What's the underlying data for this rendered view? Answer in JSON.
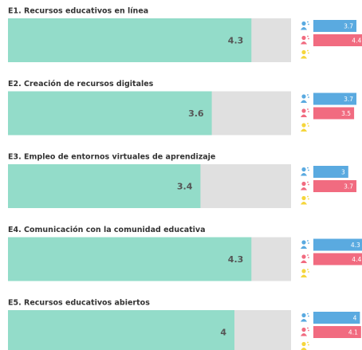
{
  "chart_data": [
    {
      "type": "bar",
      "title": "E1. Recursos educativos en línea",
      "value": 4.3,
      "xlim": [
        0,
        5
      ],
      "color": "#93dcc9",
      "track_color": "#e0e0e0",
      "series": [
        {
          "color": "#5aaae0",
          "values": [
            3.7
          ]
        },
        {
          "color": "#f16b80",
          "values": [
            4.4
          ]
        },
        {
          "color": "#f5d63c",
          "values": [
            null
          ]
        }
      ]
    },
    {
      "type": "bar",
      "title": "E2. Creación de recursos digitales",
      "value": 3.6,
      "xlim": [
        0,
        5
      ],
      "color": "#93dcc9",
      "track_color": "#e0e0e0",
      "series": [
        {
          "color": "#5aaae0",
          "values": [
            3.7
          ]
        },
        {
          "color": "#f16b80",
          "values": [
            3.5
          ]
        },
        {
          "color": "#f5d63c",
          "values": [
            null
          ]
        }
      ]
    },
    {
      "type": "bar",
      "title": "E3. Empleo de entornos virtuales de aprendizaje",
      "value": 3.4,
      "xlim": [
        0,
        5
      ],
      "color": "#93dcc9",
      "track_color": "#e0e0e0",
      "series": [
        {
          "color": "#5aaae0",
          "values": [
            3
          ]
        },
        {
          "color": "#f16b80",
          "values": [
            3.7
          ]
        },
        {
          "color": "#f5d63c",
          "values": [
            null
          ]
        }
      ]
    },
    {
      "type": "bar",
      "title": "E4. Comunicación con la comunidad educativa",
      "value": 4.3,
      "xlim": [
        0,
        5
      ],
      "color": "#93dcc9",
      "track_color": "#e0e0e0",
      "series": [
        {
          "color": "#5aaae0",
          "values": [
            4.3
          ]
        },
        {
          "color": "#f16b80",
          "values": [
            4.4
          ]
        },
        {
          "color": "#f5d63c",
          "values": [
            null
          ]
        }
      ]
    },
    {
      "type": "bar",
      "title": "E5. Recursos educativos abiertos",
      "value": 4,
      "xlim": [
        0,
        5
      ],
      "color": "#93dcc9",
      "track_color": "#e0e0e0",
      "series": [
        {
          "color": "#5aaae0",
          "values": [
            4
          ]
        },
        {
          "color": "#f16b80",
          "values": [
            4.1
          ]
        },
        {
          "color": "#f5d63c",
          "values": [
            null
          ]
        }
      ]
    }
  ]
}
